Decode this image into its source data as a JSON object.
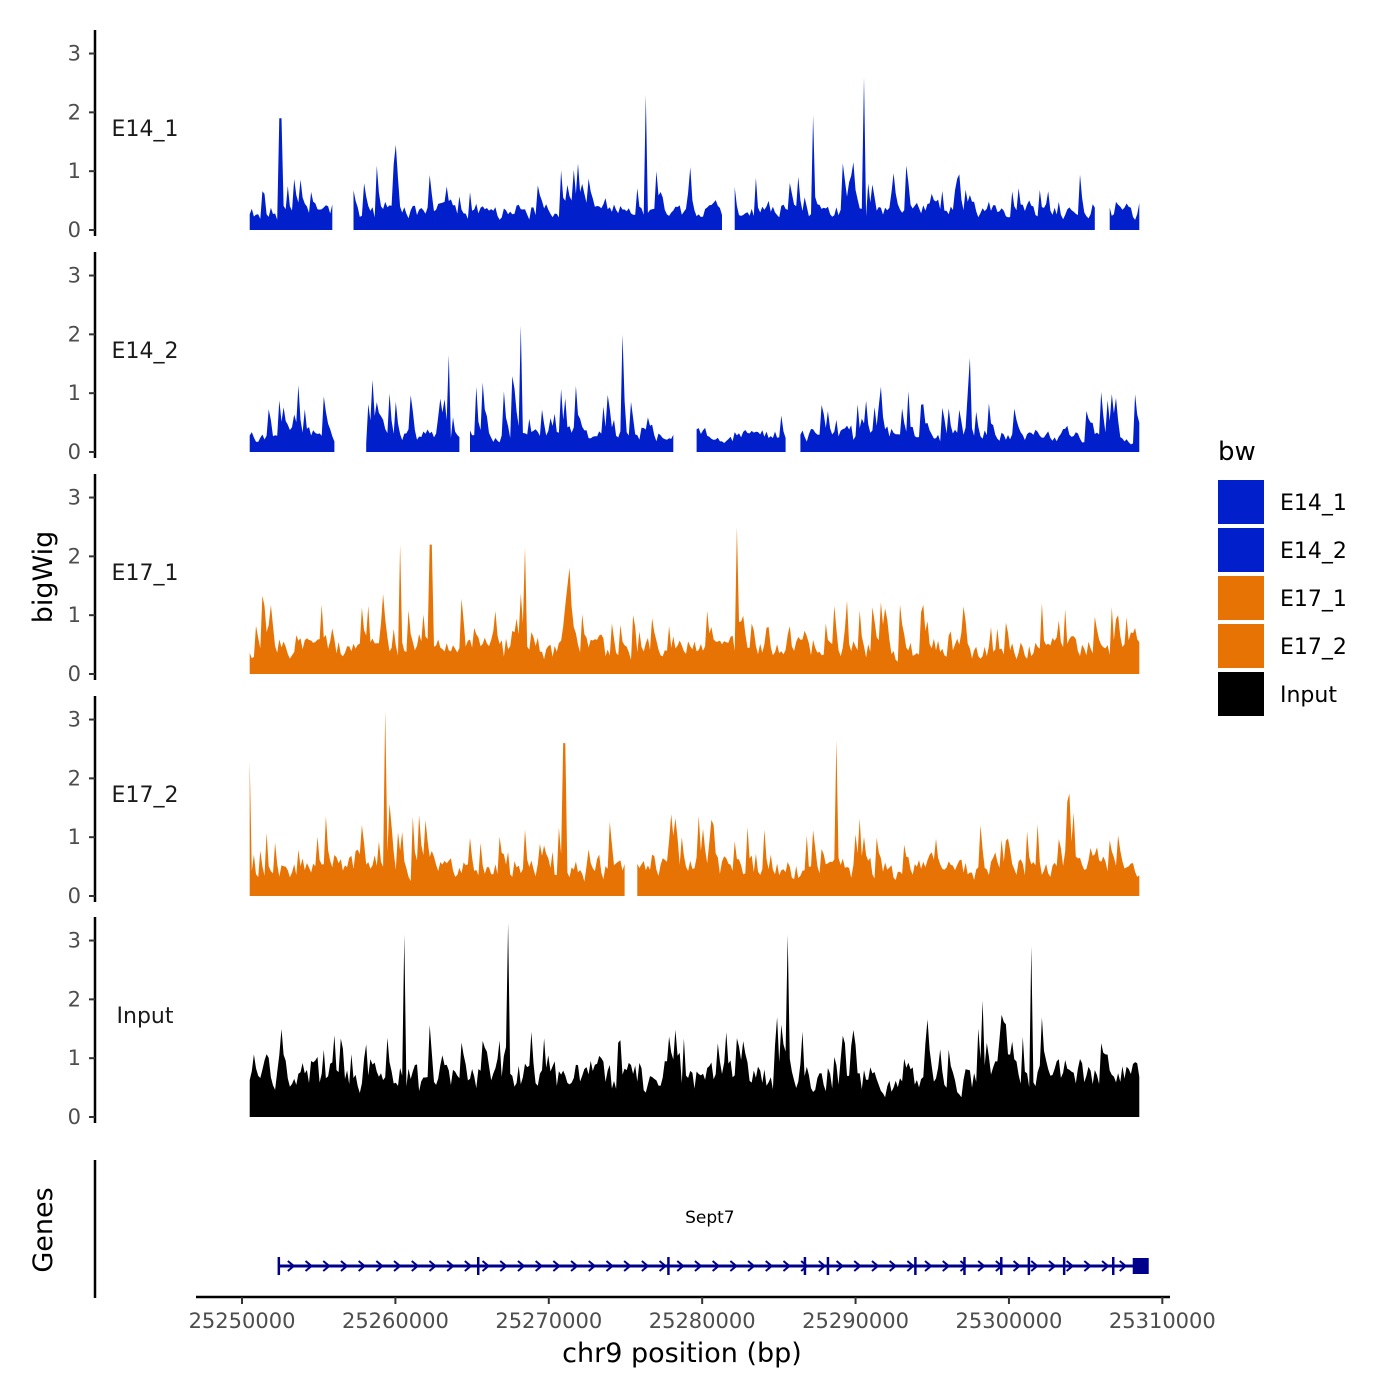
{
  "chart_data": {
    "type": "area",
    "title": "",
    "ylabel": "bigWig",
    "xlabel": "chr9 position (bp)",
    "xlim": [
      25247000,
      25310500
    ],
    "ylim": [
      0,
      3.4
    ],
    "data_range": [
      25250500,
      25308500
    ],
    "y_ticks": [
      "0",
      "1",
      "2",
      "3"
    ],
    "x_ticks": [
      {
        "value": 25250000,
        "label": "25250000"
      },
      {
        "value": 25260000,
        "label": "25260000"
      },
      {
        "value": 25270000,
        "label": "25270000"
      },
      {
        "value": 25280000,
        "label": "25280000"
      },
      {
        "value": 25290000,
        "label": "25290000"
      },
      {
        "value": 25300000,
        "label": "25300000"
      },
      {
        "value": 25310000,
        "label": "25310000"
      }
    ],
    "legend": {
      "title": "bw",
      "position": "right",
      "items": [
        {
          "label": "E14_1",
          "color": "#0120CC"
        },
        {
          "label": "E14_2",
          "color": "#0120CC"
        },
        {
          "label": "E17_1",
          "color": "#E87305"
        },
        {
          "label": "E17_2",
          "color": "#E87305"
        },
        {
          "label": "Input",
          "color": "#000000"
        }
      ]
    },
    "series": [
      {
        "name": "E14_1",
        "color": "#0120CC",
        "seed": 11,
        "base": 0.45,
        "spread": 1.15,
        "gaps": [
          [
            25256000,
            25257200
          ],
          [
            25281300,
            25282100
          ],
          [
            25305700,
            25306500
          ]
        ],
        "peaks": [
          [
            25276300,
            2.3
          ],
          [
            25290600,
            2.6
          ],
          [
            25252500,
            1.9
          ],
          [
            25287200,
            1.95
          ]
        ]
      },
      {
        "name": "E14_2",
        "color": "#0120CC",
        "seed": 23,
        "base": 0.4,
        "spread": 1.2,
        "gaps": [
          [
            25256100,
            25258000
          ],
          [
            25264200,
            25264800
          ],
          [
            25278200,
            25279500
          ],
          [
            25285500,
            25286300
          ]
        ],
        "peaks": [
          [
            25268200,
            2.15
          ],
          [
            25274800,
            2.0
          ],
          [
            25263500,
            1.65
          ],
          [
            25297500,
            1.6
          ]
        ]
      },
      {
        "name": "E17_1",
        "color": "#E87305",
        "seed": 37,
        "base": 0.6,
        "spread": 1.25,
        "gaps": [],
        "peaks": [
          [
            25282300,
            2.5
          ],
          [
            25260300,
            2.2
          ],
          [
            25262300,
            2.2
          ],
          [
            25268400,
            2.15
          ]
        ]
      },
      {
        "name": "E17_2",
        "color": "#E87305",
        "seed": 53,
        "base": 0.65,
        "spread": 1.35,
        "gaps": [
          [
            25275000,
            25275700
          ]
        ],
        "peaks": [
          [
            25259300,
            3.15
          ],
          [
            25271000,
            2.6
          ],
          [
            25288800,
            2.65
          ],
          [
            25250500,
            2.3
          ]
        ]
      },
      {
        "name": "Input",
        "color": "#000000",
        "seed": 71,
        "base": 0.95,
        "spread": 1.3,
        "gaps": [],
        "peaks": [
          [
            25267400,
            3.3
          ],
          [
            25260600,
            3.1
          ],
          [
            25285600,
            3.1
          ],
          [
            25301500,
            2.9
          ]
        ]
      }
    ],
    "genes_track": {
      "label": "Genes",
      "gene": {
        "name": "Sept7",
        "start": 25252400,
        "end": 25308600,
        "strand": "+",
        "color": "#00008B"
      },
      "exons": [
        25252400,
        25265400,
        25277800,
        25286700,
        25288200,
        25293900,
        25297100,
        25299500,
        25301300,
        25303600,
        25306800,
        25308200
      ]
    }
  }
}
